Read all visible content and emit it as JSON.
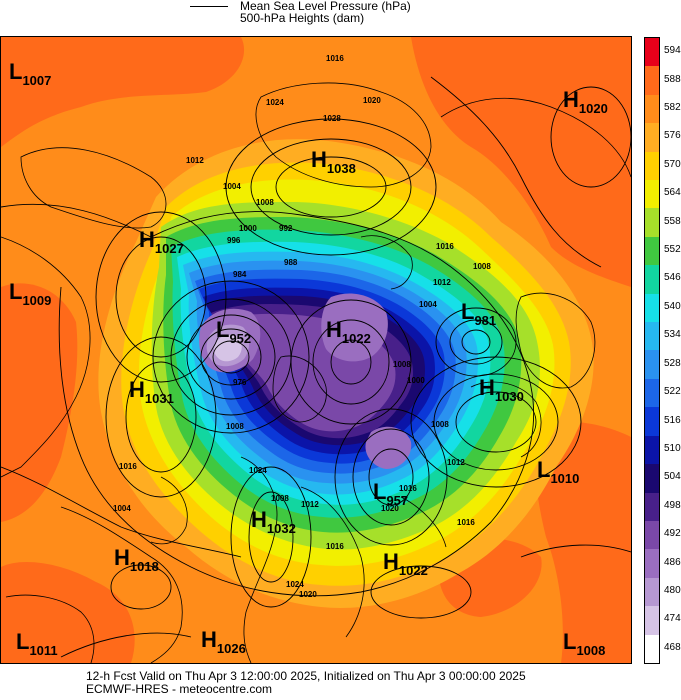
{
  "legend": {
    "line1": "Mean Sea Level Pressure (hPa)",
    "line2": "500-hPa Heights (dam)"
  },
  "colorbar": {
    "labels": [
      "594",
      "588",
      "582",
      "576",
      "570",
      "564",
      "558",
      "552",
      "546",
      "540",
      "534",
      "528",
      "522",
      "516",
      "510",
      "504",
      "498",
      "492",
      "486",
      "480",
      "474",
      "468"
    ],
    "colors": [
      "#e8001a",
      "#ff6a1a",
      "#ff8c1a",
      "#ffad22",
      "#ffd000",
      "#f2ef00",
      "#a6e02a",
      "#40c840",
      "#12d6a0",
      "#16e0e8",
      "#26b8f0",
      "#2a92f0",
      "#1c66e8",
      "#0b38d8",
      "#0b14a8",
      "#1a0870",
      "#48208a",
      "#7a48a8",
      "#9a6ec0",
      "#b698d2",
      "#d6c4e6",
      "#ffffff"
    ]
  },
  "pressure_centers": [
    {
      "type": "L",
      "value": "1007"
    },
    {
      "type": "H",
      "value": "1020"
    },
    {
      "type": "H",
      "value": "1038"
    },
    {
      "type": "H",
      "value": "1027"
    },
    {
      "type": "L",
      "value": "1009"
    },
    {
      "type": "L",
      "value": "952"
    },
    {
      "type": "H",
      "value": "1022"
    },
    {
      "type": "L",
      "value": "981"
    },
    {
      "type": "H",
      "value": "1031"
    },
    {
      "type": "H",
      "value": "1030"
    },
    {
      "type": "L",
      "value": "1010"
    },
    {
      "type": "L",
      "value": "957"
    },
    {
      "type": "H",
      "value": "1032"
    },
    {
      "type": "H",
      "value": "1018"
    },
    {
      "type": "H",
      "value": "1022"
    },
    {
      "type": "L",
      "value": "1011"
    },
    {
      "type": "H",
      "value": "1026"
    },
    {
      "type": "L",
      "value": "1008"
    }
  ],
  "isobar_labels": [
    "1016",
    "1024",
    "1020",
    "1028",
    "1012",
    "1004",
    "1008",
    "1000",
    "992",
    "996",
    "984",
    "988",
    "1016",
    "1008",
    "1024",
    "1012",
    "976",
    "1008",
    "1008",
    "1000",
    "1004",
    "1008",
    "1012",
    "1016",
    "1020",
    "1016",
    "1004",
    "1008",
    "1012",
    "1016",
    "1024",
    "1020",
    "1016"
  ],
  "footer": {
    "line1": "12-h Fcst Valid on Thu Apr  3 12:00:00 2025, Initialized on Thu Apr  3 00:00:00 2025",
    "line2": "ECMWF-HRES  - meteocentre.com"
  }
}
